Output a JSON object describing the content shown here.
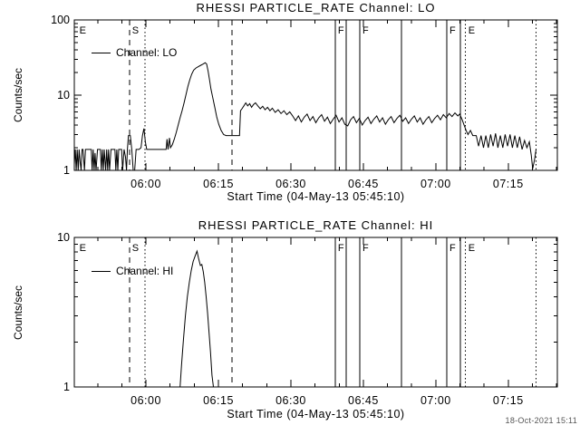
{
  "timestamp": "18-Oct-2021 15:11",
  "colors": {
    "background": "#ffffff",
    "foreground": "#000000",
    "timestamp_gray": "#555555"
  },
  "chart_data": [
    {
      "type": "line",
      "title": "RHESSI PARTICLE_RATE Channel: LO",
      "ylabel": "Counts/sec",
      "xlabel": "Start Time (04-May-13 05:45:10)",
      "legend": "Channel: LO",
      "yscale": "log",
      "ylim": [
        1,
        100
      ],
      "y_ticks": [
        {
          "v": 1,
          "label": "1"
        },
        {
          "v": 10,
          "label": "10"
        },
        {
          "v": 100,
          "label": "100"
        }
      ],
      "xlim_minutes": [
        0,
        100
      ],
      "x_start_time": "05:45:10",
      "x_minor_step": 5,
      "x_ticks": [
        {
          "t": 14.833,
          "label": "06:00"
        },
        {
          "t": 29.833,
          "label": "06:15"
        },
        {
          "t": 44.833,
          "label": "06:30"
        },
        {
          "t": 59.833,
          "label": "06:45"
        },
        {
          "t": 74.833,
          "label": "07:00"
        },
        {
          "t": 89.833,
          "label": "07:15"
        }
      ],
      "markers": [
        {
          "t": 0.5,
          "style": "none",
          "label": "E"
        },
        {
          "t": 11.4,
          "style": "dashed",
          "label": "S"
        },
        {
          "t": 14.6,
          "style": "dotted",
          "label": ""
        },
        {
          "t": 32.6,
          "style": "dashed",
          "label": ""
        },
        {
          "t": 54.0,
          "style": "solid",
          "label": "F"
        },
        {
          "t": 56.3,
          "style": "solid",
          "label": ""
        },
        {
          "t": 59.1,
          "style": "solid",
          "label": "F"
        },
        {
          "t": 67.7,
          "style": "solid",
          "label": ""
        },
        {
          "t": 77.1,
          "style": "solid",
          "label": "F"
        },
        {
          "t": 79.9,
          "style": "solid",
          "label": ""
        },
        {
          "t": 81.0,
          "style": "dotted",
          "label": "E"
        },
        {
          "t": 95.6,
          "style": "dotted",
          "label": ""
        }
      ],
      "points_t_value": [
        [
          0,
          1.2
        ],
        [
          0.2,
          1.9
        ],
        [
          0.4,
          1.0
        ],
        [
          0.6,
          1.9
        ],
        [
          0.8,
          1.0
        ],
        [
          1.0,
          1.9
        ],
        [
          1.2,
          1.3
        ],
        [
          1.4,
          1.0
        ],
        [
          1.6,
          1.9
        ],
        [
          1.8,
          1.9
        ],
        [
          2.1,
          1.0
        ],
        [
          2.3,
          1.9
        ],
        [
          2.6,
          1.9
        ],
        [
          3.5,
          1.9
        ],
        [
          3.7,
          1.0
        ],
        [
          3.9,
          1.9
        ],
        [
          4.1,
          1.0
        ],
        [
          4.3,
          1.7
        ],
        [
          4.5,
          1.0
        ],
        [
          4.8,
          1.9
        ],
        [
          5.4,
          1.9
        ],
        [
          5.6,
          1.0
        ],
        [
          5.8,
          1.9
        ],
        [
          6.0,
          1.0
        ],
        [
          6.2,
          1.9
        ],
        [
          6.5,
          1.0
        ],
        [
          6.7,
          1.9
        ],
        [
          6.9,
          1.0
        ],
        [
          7.1,
          1.9
        ],
        [
          7.3,
          1.0
        ],
        [
          7.6,
          1.9
        ],
        [
          8.4,
          1.9
        ],
        [
          8.6,
          1.0
        ],
        [
          8.8,
          1.9
        ],
        [
          9.0,
          1.0
        ],
        [
          9.2,
          1.9
        ],
        [
          9.8,
          1.9
        ],
        [
          10.0,
          1.0
        ],
        [
          10.3,
          1.9
        ],
        [
          10.6,
          1.5
        ],
        [
          10.8,
          1.0
        ],
        [
          11.0,
          1.9
        ],
        [
          11.2,
          2.9
        ],
        [
          11.6,
          2.9
        ],
        [
          11.9,
          1.9
        ],
        [
          12.2,
          1.0
        ],
        [
          12.5,
          1.0
        ],
        [
          12.8,
          1.9
        ],
        [
          13.4,
          1.9
        ],
        [
          13.8,
          2.0
        ],
        [
          14.1,
          2.9
        ],
        [
          14.4,
          3.6
        ],
        [
          14.7,
          2.4
        ],
        [
          15.0,
          1.9
        ],
        [
          16.0,
          1.9
        ],
        [
          17.5,
          1.9
        ],
        [
          19.0,
          1.9
        ],
        [
          19.2,
          2.6
        ],
        [
          19.4,
          1.9
        ],
        [
          19.7,
          2.7
        ],
        [
          19.9,
          2.0
        ],
        [
          20.3,
          2.2
        ],
        [
          20.7,
          2.6
        ],
        [
          21.1,
          3.2
        ],
        [
          21.5,
          4.0
        ],
        [
          21.9,
          5.0
        ],
        [
          22.3,
          6.2
        ],
        [
          22.7,
          7.8
        ],
        [
          23.1,
          10
        ],
        [
          23.5,
          13
        ],
        [
          23.9,
          16
        ],
        [
          24.3,
          19
        ],
        [
          24.7,
          21.5
        ],
        [
          25.2,
          23
        ],
        [
          25.7,
          24
        ],
        [
          26.2,
          25
        ],
        [
          26.7,
          26
        ],
        [
          27.1,
          27
        ],
        [
          27.4,
          26
        ],
        [
          27.7,
          21
        ],
        [
          28.0,
          16
        ],
        [
          28.3,
          12
        ],
        [
          28.7,
          9
        ],
        [
          29.1,
          6.8
        ],
        [
          29.5,
          5.1
        ],
        [
          29.9,
          4.1
        ],
        [
          30.4,
          3.4
        ],
        [
          30.9,
          3.0
        ],
        [
          31.4,
          2.9
        ],
        [
          32.5,
          2.9
        ],
        [
          34.2,
          2.9
        ],
        [
          34.4,
          6.2
        ],
        [
          34.7,
          6.6
        ],
        [
          35.1,
          7.2
        ],
        [
          35.5,
          7.9
        ],
        [
          35.9,
          7.2
        ],
        [
          36.3,
          7.7
        ],
        [
          36.7,
          6.9
        ],
        [
          37.1,
          7.5
        ],
        [
          37.5,
          7.9
        ],
        [
          38.0,
          7.2
        ],
        [
          38.5,
          6.6
        ],
        [
          39.0,
          7.1
        ],
        [
          39.5,
          6.4
        ],
        [
          40.0,
          6.9
        ],
        [
          40.5,
          6.2
        ],
        [
          41.0,
          6.7
        ],
        [
          41.6,
          5.9
        ],
        [
          42.2,
          6.4
        ],
        [
          42.8,
          5.7
        ],
        [
          43.4,
          6.2
        ],
        [
          44.0,
          5.5
        ],
        [
          44.6,
          6.0
        ],
        [
          45.2,
          5.3
        ],
        [
          45.8,
          4.6
        ],
        [
          46.4,
          5.3
        ],
        [
          47.0,
          4.4
        ],
        [
          47.6,
          5.1
        ],
        [
          48.2,
          5.6
        ],
        [
          48.8,
          4.6
        ],
        [
          49.4,
          5.2
        ],
        [
          50.0,
          4.3
        ],
        [
          50.6,
          5.0
        ],
        [
          51.2,
          5.5
        ],
        [
          51.8,
          4.5
        ],
        [
          52.4,
          5.1
        ],
        [
          53.0,
          4.2
        ],
        [
          53.6,
          4.8
        ],
        [
          54.2,
          5.4
        ],
        [
          54.8,
          4.4
        ],
        [
          55.4,
          5.0
        ],
        [
          56.0,
          4.1
        ],
        [
          56.6,
          3.9
        ],
        [
          57.2,
          4.7
        ],
        [
          57.8,
          5.2
        ],
        [
          58.4,
          4.3
        ],
        [
          59.0,
          4.9
        ],
        [
          59.6,
          4.0
        ],
        [
          60.2,
          4.6
        ],
        [
          60.8,
          5.1
        ],
        [
          61.4,
          4.2
        ],
        [
          62.0,
          4.8
        ],
        [
          62.6,
          5.3
        ],
        [
          63.2,
          4.4
        ],
        [
          63.8,
          5.0
        ],
        [
          64.4,
          4.1
        ],
        [
          65.0,
          4.7
        ],
        [
          65.6,
          5.2
        ],
        [
          66.2,
          4.3
        ],
        [
          66.8,
          4.9
        ],
        [
          67.4,
          5.4
        ],
        [
          68.0,
          4.5
        ],
        [
          68.6,
          5.0
        ],
        [
          69.2,
          4.2
        ],
        [
          69.8,
          4.8
        ],
        [
          70.4,
          5.3
        ],
        [
          71.0,
          4.4
        ],
        [
          71.6,
          5.0
        ],
        [
          72.2,
          4.1
        ],
        [
          72.8,
          4.7
        ],
        [
          73.4,
          5.2
        ],
        [
          74.0,
          4.3
        ],
        [
          74.6,
          4.9
        ],
        [
          75.2,
          5.4
        ],
        [
          75.8,
          4.7
        ],
        [
          76.4,
          5.5
        ],
        [
          77.0,
          5.0
        ],
        [
          77.6,
          5.7
        ],
        [
          78.2,
          5.2
        ],
        [
          78.8,
          5.8
        ],
        [
          79.4,
          5.3
        ],
        [
          79.8,
          5.6
        ],
        [
          80.3,
          4.7
        ],
        [
          80.7,
          4.0
        ],
        [
          81.1,
          3.4
        ],
        [
          81.5,
          3.0
        ],
        [
          82.0,
          3.4
        ],
        [
          82.5,
          2.9
        ],
        [
          83.2,
          2.9
        ],
        [
          83.7,
          2.1
        ],
        [
          84.2,
          2.9
        ],
        [
          84.7,
          2.0
        ],
        [
          85.2,
          2.9
        ],
        [
          85.7,
          2.0
        ],
        [
          86.2,
          3.0
        ],
        [
          86.7,
          2.1
        ],
        [
          87.2,
          3.1
        ],
        [
          87.7,
          2.0
        ],
        [
          88.2,
          2.9
        ],
        [
          88.7,
          2.0
        ],
        [
          89.2,
          3.0
        ],
        [
          89.7,
          2.1
        ],
        [
          90.2,
          3.0
        ],
        [
          90.7,
          2.0
        ],
        [
          91.2,
          2.9
        ],
        [
          91.7,
          2.0
        ],
        [
          92.2,
          2.8
        ],
        [
          92.7,
          1.9
        ],
        [
          93.2,
          2.5
        ],
        [
          93.7,
          2.0
        ],
        [
          94.2,
          2.4
        ],
        [
          94.6,
          1.6
        ],
        [
          94.9,
          1.05
        ],
        [
          95.3,
          1.4
        ],
        [
          95.6,
          1.9
        ]
      ]
    },
    {
      "type": "line",
      "title": "RHESSI PARTICLE_RATE Channel: HI",
      "ylabel": "Counts/sec",
      "xlabel": "Start Time (04-May-13 05:45:10)",
      "legend": "Channel: HI",
      "yscale": "log",
      "ylim": [
        1,
        10
      ],
      "y_ticks": [
        {
          "v": 1,
          "label": "1"
        },
        {
          "v": 10,
          "label": "10"
        }
      ],
      "xlim_minutes": [
        0,
        100
      ],
      "x_start_time": "05:45:10",
      "x_minor_step": 5,
      "x_ticks": [
        {
          "t": 14.833,
          "label": "06:00"
        },
        {
          "t": 29.833,
          "label": "06:15"
        },
        {
          "t": 44.833,
          "label": "06:30"
        },
        {
          "t": 59.833,
          "label": "06:45"
        },
        {
          "t": 74.833,
          "label": "07:00"
        },
        {
          "t": 89.833,
          "label": "07:15"
        }
      ],
      "markers": [
        {
          "t": 0.5,
          "style": "none",
          "label": "E"
        },
        {
          "t": 11.4,
          "style": "dashed",
          "label": "S"
        },
        {
          "t": 14.6,
          "style": "dotted",
          "label": ""
        },
        {
          "t": 32.6,
          "style": "dashed",
          "label": ""
        },
        {
          "t": 54.0,
          "style": "solid",
          "label": "F"
        },
        {
          "t": 56.3,
          "style": "solid",
          "label": ""
        },
        {
          "t": 59.1,
          "style": "solid",
          "label": "F"
        },
        {
          "t": 67.7,
          "style": "solid",
          "label": ""
        },
        {
          "t": 77.1,
          "style": "solid",
          "label": "F"
        },
        {
          "t": 79.9,
          "style": "solid",
          "label": ""
        },
        {
          "t": 81.0,
          "style": "dotted",
          "label": "E"
        },
        {
          "t": 95.6,
          "style": "dotted",
          "label": ""
        }
      ],
      "points_t_value": [
        [
          0,
          1
        ],
        [
          5,
          1
        ],
        [
          10,
          1
        ],
        [
          15,
          1
        ],
        [
          20,
          1
        ],
        [
          21.9,
          1
        ],
        [
          22.2,
          1.4
        ],
        [
          22.6,
          2.1
        ],
        [
          23.0,
          3.0
        ],
        [
          23.4,
          4.0
        ],
        [
          23.8,
          5.0
        ],
        [
          24.2,
          6.0
        ],
        [
          24.6,
          6.9
        ],
        [
          25.0,
          7.5
        ],
        [
          25.4,
          8.1
        ],
        [
          25.7,
          7.3
        ],
        [
          25.9,
          6.9
        ],
        [
          26.1,
          6.5
        ],
        [
          26.4,
          6.6
        ],
        [
          26.7,
          5.9
        ],
        [
          27.0,
          5.0
        ],
        [
          27.3,
          4.0
        ],
        [
          27.6,
          3.1
        ],
        [
          27.9,
          2.3
        ],
        [
          28.2,
          1.7
        ],
        [
          28.5,
          1.2
        ],
        [
          28.8,
          1.0
        ],
        [
          35,
          1
        ],
        [
          45,
          1
        ],
        [
          55,
          1
        ],
        [
          65,
          1
        ],
        [
          75,
          1
        ],
        [
          85,
          1
        ],
        [
          95.6,
          1
        ]
      ]
    }
  ]
}
